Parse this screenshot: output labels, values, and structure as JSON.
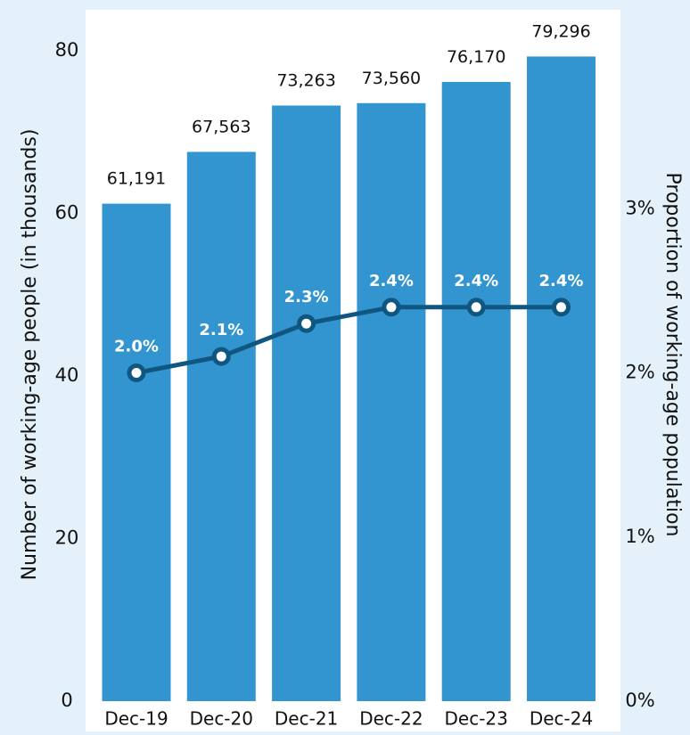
{
  "chart_data": {
    "type": "bar",
    "categories": [
      "Dec-19",
      "Dec-20",
      "Dec-21",
      "Dec-22",
      "Dec-23",
      "Dec-24"
    ],
    "series": [
      {
        "type": "bar",
        "axis": "left",
        "values": [
          61.191,
          67.563,
          73.263,
          73.56,
          76.17,
          79.296
        ],
        "labels": [
          "61,191",
          "67,563",
          "73,263",
          "73,560",
          "76,170",
          "79,296"
        ],
        "color": "#3395d0"
      },
      {
        "type": "line",
        "axis": "right",
        "values": [
          2.0,
          2.1,
          2.3,
          2.4,
          2.4,
          2.4
        ],
        "labels": [
          "2.0%",
          "2.1%",
          "2.3%",
          "2.4%",
          "2.4%",
          "2.4%"
        ],
        "color": "#0f5781"
      }
    ],
    "ylabel": "Number of working-age people (in thousands)",
    "ylabel_right": "Proportion of working-age population",
    "ylim": [
      0,
      80
    ],
    "yticks": [
      "0",
      "20",
      "40",
      "60",
      "80"
    ],
    "ylim_right": [
      0,
      4
    ],
    "yticks_right": [
      "0%",
      "1%",
      "2%",
      "3%"
    ],
    "grid": false,
    "legend": "none",
    "plot_background": "#ffffff",
    "page_background": "#e4f1fa"
  }
}
